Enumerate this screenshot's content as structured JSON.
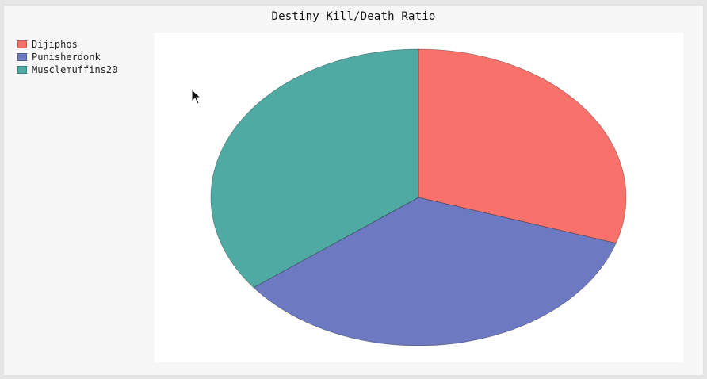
{
  "chart_data": {
    "type": "pie",
    "title": "Destiny Kill/Death Ratio",
    "legend_position": "top-left",
    "slices": [
      {
        "label": "Dijiphos",
        "value": 0.3,
        "color": "#f8726b"
      },
      {
        "label": "Punisherdonk",
        "value": 0.346,
        "color": "#6d7ac2"
      },
      {
        "label": "Musclemuffins20",
        "value": 0.354,
        "color": "#4eaaa2"
      }
    ]
  }
}
